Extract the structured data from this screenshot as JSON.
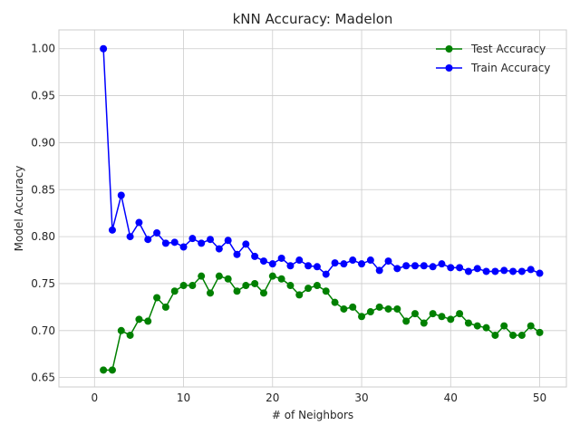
{
  "chart_data": {
    "type": "line",
    "title": "kNN Accuracy: Madelon",
    "xlabel": "# of Neighbors",
    "ylabel": "Model Accuracy",
    "xlim": [
      -4,
      53
    ],
    "ylim": [
      0.64,
      1.02
    ],
    "xticks": [
      0,
      10,
      20,
      30,
      40,
      50
    ],
    "yticks": [
      0.65,
      0.7,
      0.75,
      0.8,
      0.85,
      0.9,
      0.95,
      1.0
    ],
    "grid": true,
    "legend_position": "top-right",
    "x": [
      1,
      2,
      3,
      4,
      5,
      6,
      7,
      8,
      9,
      10,
      11,
      12,
      13,
      14,
      15,
      16,
      17,
      18,
      19,
      20,
      21,
      22,
      23,
      24,
      25,
      26,
      27,
      28,
      29,
      30,
      31,
      32,
      33,
      34,
      35,
      36,
      37,
      38,
      39,
      40,
      41,
      42,
      43,
      44,
      45,
      46,
      47,
      48,
      49,
      50
    ],
    "series": [
      {
        "name": "Test Accuracy",
        "color": "#008000",
        "values": [
          0.658,
          0.658,
          0.7,
          0.695,
          0.712,
          0.71,
          0.735,
          0.725,
          0.742,
          0.748,
          0.748,
          0.758,
          0.74,
          0.758,
          0.755,
          0.742,
          0.748,
          0.75,
          0.74,
          0.758,
          0.755,
          0.748,
          0.738,
          0.745,
          0.748,
          0.742,
          0.73,
          0.723,
          0.725,
          0.715,
          0.72,
          0.725,
          0.723,
          0.723,
          0.71,
          0.718,
          0.708,
          0.718,
          0.715,
          0.712,
          0.718,
          0.708,
          0.705,
          0.703,
          0.695,
          0.705,
          0.695,
          0.695,
          0.705,
          0.698
        ]
      },
      {
        "name": "Train Accuracy",
        "color": "#0000ff",
        "values": [
          1.0,
          0.807,
          0.844,
          0.8,
          0.815,
          0.797,
          0.804,
          0.793,
          0.794,
          0.789,
          0.798,
          0.793,
          0.797,
          0.787,
          0.796,
          0.781,
          0.792,
          0.779,
          0.774,
          0.771,
          0.777,
          0.769,
          0.775,
          0.769,
          0.768,
          0.76,
          0.772,
          0.771,
          0.775,
          0.771,
          0.775,
          0.764,
          0.774,
          0.766,
          0.769,
          0.769,
          0.769,
          0.768,
          0.771,
          0.767,
          0.767,
          0.763,
          0.766,
          0.763,
          0.763,
          0.764,
          0.763,
          0.763,
          0.765,
          0.761
        ]
      }
    ]
  }
}
